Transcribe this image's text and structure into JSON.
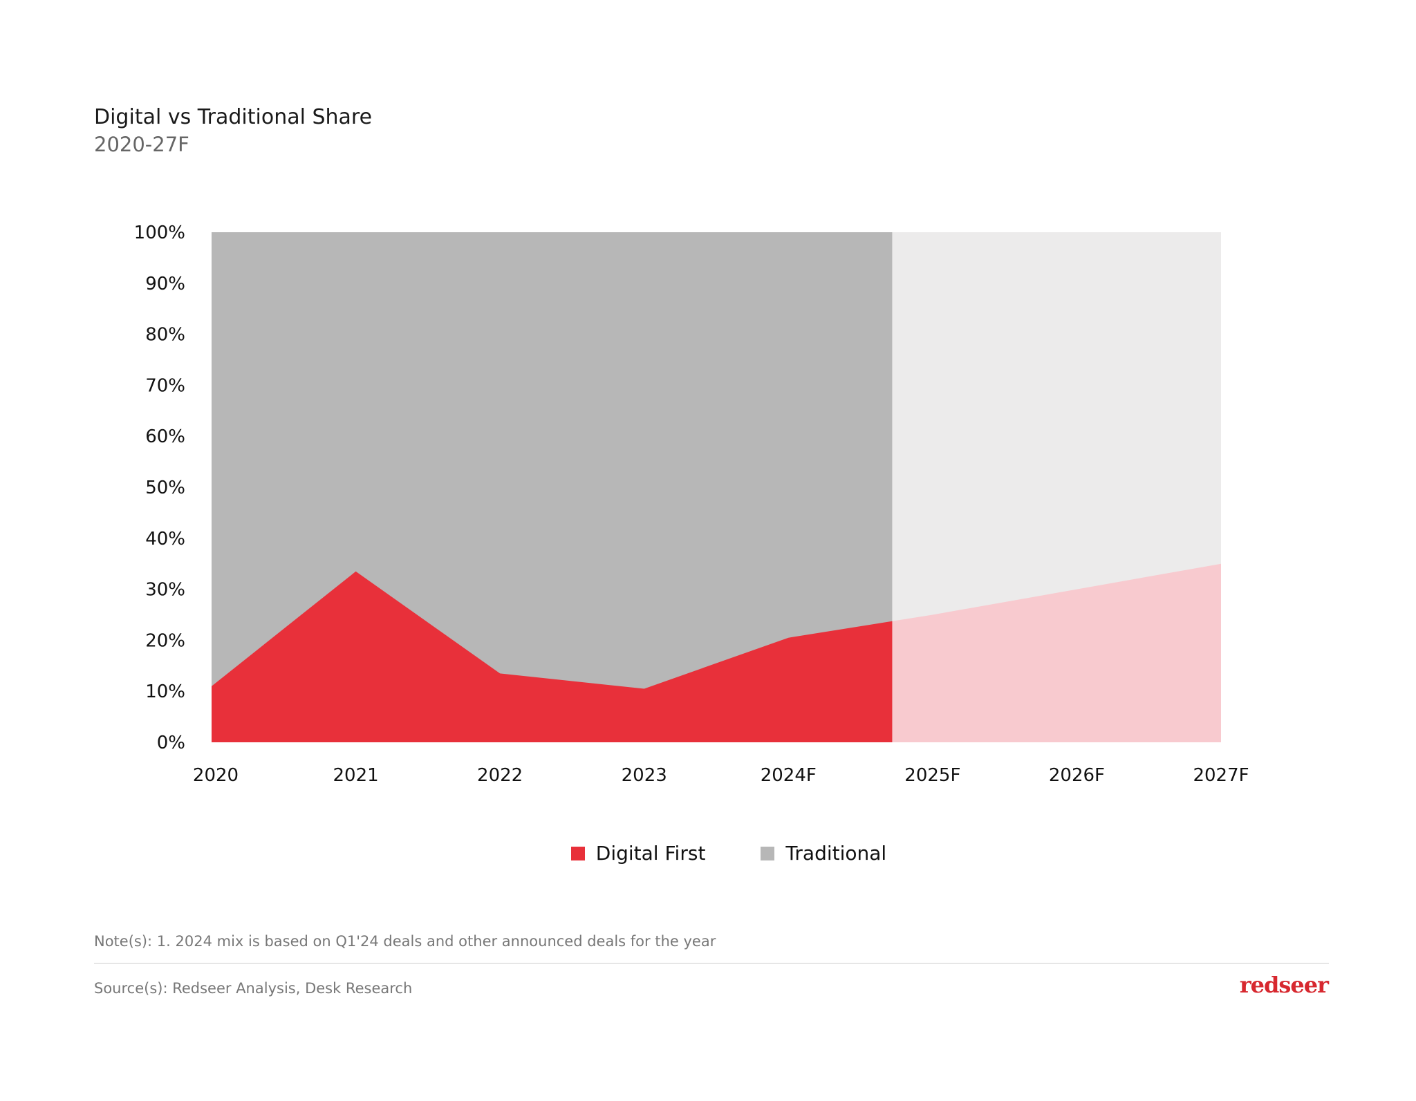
{
  "header": {
    "title": "Digital vs Traditional Share",
    "subtitle": "2020-27F"
  },
  "chart_data": {
    "type": "area",
    "stacked": true,
    "percent": true,
    "categories": [
      "2020",
      "2021",
      "2022",
      "2023",
      "2024F",
      "2025F",
      "2026F",
      "2027F"
    ],
    "series": [
      {
        "name": "Digital First",
        "values": [
          11,
          33.5,
          13.5,
          10.5,
          20.5,
          25,
          30,
          35
        ],
        "color": "#E8303A",
        "forecast_color": "#F8CACF"
      },
      {
        "name": "Traditional",
        "values": [
          89,
          66.5,
          86.5,
          89.5,
          79.5,
          75,
          70,
          65
        ],
        "color": "#B7B7B7",
        "forecast_color": "#ECEBEB"
      }
    ],
    "ylim": [
      0,
      100
    ],
    "yticks": [
      "0%",
      "10%",
      "20%",
      "30%",
      "40%",
      "50%",
      "60%",
      "70%",
      "80%",
      "90%",
      "100%"
    ],
    "grid": false,
    "legend": "bottom-center",
    "forecast_shading": "lighter tint between 2024F and 2025F onward"
  },
  "legend": {
    "items": [
      {
        "label": "Digital First",
        "color": "#E8303A"
      },
      {
        "label": "Traditional",
        "color": "#B7B7B7"
      }
    ]
  },
  "footer": {
    "note": "Note(s): 1. 2024 mix is based on Q1'24 deals and other announced deals for the year",
    "source": "Source(s): Redseer Analysis, Desk Research",
    "logo": "redseer",
    "logo_color": "#D7282F"
  }
}
